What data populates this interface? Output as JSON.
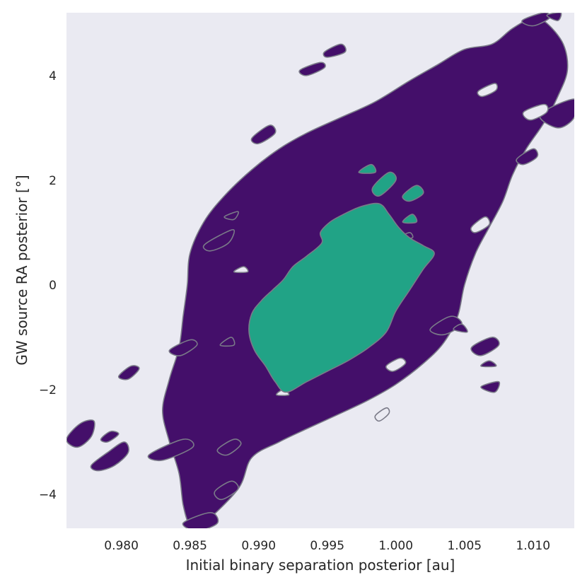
{
  "chart_data": {
    "type": "contour",
    "title": "",
    "xlabel": "Initial binary separation posterior [au]",
    "ylabel": "GW source RA posterior [°]",
    "xlim": [
      0.976,
      1.013
    ],
    "ylim": [
      -4.65,
      5.2
    ],
    "xticks": [
      0.98,
      0.985,
      0.99,
      0.995,
      1.0,
      1.005,
      1.01
    ],
    "xtick_labels": [
      "0.980",
      "0.985",
      "0.990",
      "0.995",
      "1.000",
      "1.005",
      "1.010"
    ],
    "yticks": [
      4,
      2,
      0,
      -2,
      -4
    ],
    "ytick_labels": [
      "4",
      "2",
      "0",
      "−2",
      "−4"
    ],
    "grid": false,
    "background_color": "#eaeaf2",
    "contour_levels": [
      {
        "level": "outer",
        "color": "#440f6a"
      },
      {
        "level": "inner",
        "color": "#21a386"
      }
    ],
    "outer_region": [
      [
        0.9858,
        -4.6
      ],
      [
        0.9885,
        -3.9
      ],
      [
        0.9895,
        -3.3
      ],
      [
        0.9915,
        -3.0
      ],
      [
        0.9935,
        -2.75
      ],
      [
        0.996,
        -2.45
      ],
      [
        0.998,
        -2.2
      ],
      [
        1.0,
        -1.9
      ],
      [
        1.002,
        -1.5
      ],
      [
        1.0035,
        -1.1
      ],
      [
        1.0045,
        -0.6
      ],
      [
        1.005,
        0.0
      ],
      [
        1.0058,
        0.6
      ],
      [
        1.0068,
        1.1
      ],
      [
        1.0078,
        1.6
      ],
      [
        1.0085,
        2.1
      ],
      [
        1.0095,
        2.6
      ],
      [
        1.0108,
        3.1
      ],
      [
        1.0118,
        3.6
      ],
      [
        1.0125,
        4.1
      ],
      [
        1.0122,
        4.6
      ],
      [
        1.011,
        5.0
      ],
      [
        1.01,
        5.1
      ],
      [
        1.0085,
        4.9
      ],
      [
        1.007,
        4.6
      ],
      [
        1.005,
        4.5
      ],
      [
        1.003,
        4.2
      ],
      [
        1.001,
        3.9
      ],
      [
        0.9985,
        3.5
      ],
      [
        0.996,
        3.2
      ],
      [
        0.9935,
        2.9
      ],
      [
        0.9915,
        2.6
      ],
      [
        0.9895,
        2.2
      ],
      [
        0.9875,
        1.7
      ],
      [
        0.986,
        1.2
      ],
      [
        0.985,
        0.6
      ],
      [
        0.9848,
        0.0
      ],
      [
        0.9845,
        -0.6
      ],
      [
        0.9842,
        -1.2
      ],
      [
        0.9835,
        -1.8
      ],
      [
        0.983,
        -2.4
      ],
      [
        0.9835,
        -3.0
      ],
      [
        0.9842,
        -3.6
      ],
      [
        0.9845,
        -4.2
      ],
      [
        0.985,
        -4.6
      ]
    ],
    "inner_region": [
      [
        0.992,
        -2.05
      ],
      [
        0.9935,
        -1.85
      ],
      [
        0.995,
        -1.65
      ],
      [
        0.9965,
        -1.45
      ],
      [
        0.998,
        -1.2
      ],
      [
        0.9993,
        -0.9
      ],
      [
        1.0,
        -0.5
      ],
      [
        1.001,
        -0.1
      ],
      [
        1.002,
        0.3
      ],
      [
        1.0028,
        0.6
      ],
      [
        1.002,
        0.75
      ],
      [
        1.001,
        0.9
      ],
      [
        1.0002,
        1.1
      ],
      [
        0.9995,
        1.35
      ],
      [
        0.9988,
        1.55
      ],
      [
        0.9975,
        1.5
      ],
      [
        0.9962,
        1.35
      ],
      [
        0.9952,
        1.2
      ],
      [
        0.9945,
        1.0
      ],
      [
        0.9946,
        0.8
      ],
      [
        0.9935,
        0.55
      ],
      [
        0.9925,
        0.35
      ],
      [
        0.9918,
        0.1
      ],
      [
        0.991,
        -0.1
      ],
      [
        0.9902,
        -0.3
      ],
      [
        0.9895,
        -0.55
      ],
      [
        0.9893,
        -0.9
      ],
      [
        0.9897,
        -1.25
      ],
      [
        0.9905,
        -1.55
      ],
      [
        0.9912,
        -1.85
      ]
    ],
    "outer_islands": [
      [
        [
          0.976,
          -2.95
        ],
        [
          0.977,
          -2.65
        ],
        [
          0.978,
          -2.6
        ],
        [
          0.9778,
          -2.9
        ],
        [
          0.9768,
          -3.1
        ]
      ],
      [
        [
          0.9778,
          -3.45
        ],
        [
          0.979,
          -3.2
        ],
        [
          0.9802,
          -3.0
        ],
        [
          0.9805,
          -3.2
        ],
        [
          0.9795,
          -3.45
        ],
        [
          0.9783,
          -3.55
        ]
      ],
      [
        [
          0.9785,
          -2.95
        ],
        [
          0.9792,
          -2.8
        ],
        [
          0.9798,
          -2.85
        ],
        [
          0.979,
          -3.0
        ]
      ],
      [
        [
          0.9798,
          -1.75
        ],
        [
          0.9807,
          -1.55
        ],
        [
          0.9813,
          -1.6
        ],
        [
          0.9805,
          -1.8
        ]
      ],
      [
        [
          0.982,
          -3.25
        ],
        [
          0.9845,
          -2.95
        ],
        [
          0.9852,
          -3.1
        ],
        [
          0.983,
          -3.35
        ]
      ],
      [
        [
          0.9835,
          -1.25
        ],
        [
          0.985,
          -1.05
        ],
        [
          0.9855,
          -1.15
        ],
        [
          0.9843,
          -1.35
        ]
      ],
      [
        [
          0.9845,
          -4.55
        ],
        [
          0.9865,
          -4.35
        ],
        [
          0.987,
          -4.55
        ],
        [
          0.9855,
          -4.7
        ]
      ],
      [
        [
          0.986,
          0.75
        ],
        [
          0.9872,
          0.95
        ],
        [
          0.9882,
          1.05
        ],
        [
          0.9878,
          0.8
        ],
        [
          0.9865,
          0.65
        ]
      ],
      [
        [
          0.9868,
          -3.95
        ],
        [
          0.988,
          -3.75
        ],
        [
          0.9885,
          -3.9
        ],
        [
          0.9873,
          -4.1
        ]
      ],
      [
        [
          0.9875,
          1.3
        ],
        [
          0.9885,
          1.4
        ],
        [
          0.9882,
          1.25
        ]
      ],
      [
        [
          0.987,
          -3.15
        ],
        [
          0.9882,
          -2.95
        ],
        [
          0.9887,
          -3.05
        ],
        [
          0.9877,
          -3.25
        ]
      ],
      [
        [
          0.9872,
          -1.15
        ],
        [
          0.988,
          -1.0
        ],
        [
          0.9882,
          -1.15
        ]
      ],
      [
        [
          0.9895,
          2.8
        ],
        [
          0.9908,
          3.05
        ],
        [
          0.9912,
          2.9
        ],
        [
          0.99,
          2.7
        ]
      ],
      [
        [
          0.993,
          4.1
        ],
        [
          0.9945,
          4.25
        ],
        [
          0.9948,
          4.15
        ],
        [
          0.9935,
          4.0
        ]
      ],
      [
        [
          0.9948,
          4.45
        ],
        [
          0.996,
          4.6
        ],
        [
          0.9963,
          4.45
        ],
        [
          0.995,
          4.35
        ]
      ],
      [
        [
          1.0003,
          0.9
        ],
        [
          1.001,
          1.0
        ],
        [
          1.0012,
          0.9
        ]
      ],
      [
        [
          1.0025,
          -0.85
        ],
        [
          1.004,
          -0.6
        ],
        [
          1.0048,
          -0.75
        ],
        [
          1.0035,
          -0.95
        ]
      ],
      [
        [
          1.0042,
          -0.85
        ],
        [
          1.0048,
          -0.75
        ],
        [
          1.0052,
          -0.9
        ]
      ],
      [
        [
          1.0055,
          -1.2
        ],
        [
          1.007,
          -1.0
        ],
        [
          1.0075,
          -1.15
        ],
        [
          1.0062,
          -1.35
        ]
      ],
      [
        [
          1.0062,
          -1.55
        ],
        [
          1.0068,
          -1.45
        ],
        [
          1.0073,
          -1.55
        ]
      ],
      [
        [
          1.0062,
          -1.95
        ],
        [
          1.0075,
          -1.85
        ],
        [
          1.0072,
          -2.05
        ]
      ],
      [
        [
          1.0088,
          2.4
        ],
        [
          1.01,
          2.6
        ],
        [
          1.0103,
          2.45
        ],
        [
          1.0093,
          2.3
        ]
      ],
      [
        [
          1.0105,
          3.25
        ],
        [
          1.013,
          3.55
        ],
        [
          1.013,
          3.2
        ],
        [
          1.0118,
          3.0
        ]
      ],
      [
        [
          1.0092,
          5.05
        ],
        [
          1.0108,
          5.2
        ],
        [
          1.0112,
          5.1
        ],
        [
          1.01,
          4.95
        ]
      ],
      [
        [
          1.011,
          5.15
        ],
        [
          1.012,
          5.2
        ],
        [
          1.0118,
          5.05
        ]
      ]
    ],
    "inner_islands": [
      [
        [
          0.9983,
          1.85
        ],
        [
          0.9995,
          2.15
        ],
        [
          1.0,
          2.0
        ],
        [
          0.9988,
          1.7
        ]
      ],
      [
        [
          1.0005,
          1.7
        ],
        [
          1.0015,
          1.9
        ],
        [
          1.002,
          1.75
        ],
        [
          1.001,
          1.6
        ]
      ],
      [
        [
          1.0005,
          1.2
        ],
        [
          1.0012,
          1.35
        ],
        [
          1.0015,
          1.2
        ]
      ],
      [
        [
          0.9973,
          2.15
        ],
        [
          0.9982,
          2.3
        ],
        [
          0.9985,
          2.15
        ]
      ]
    ],
    "outer_holes": [
      [
        [
          0.9993,
          -1.55
        ],
        [
          1.0003,
          -1.4
        ],
        [
          1.0007,
          -1.5
        ],
        [
          0.9998,
          -1.65
        ]
      ],
      [
        [
          0.9985,
          -2.5
        ],
        [
          0.9993,
          -2.35
        ],
        [
          0.9995,
          -2.45
        ],
        [
          0.9988,
          -2.6
        ]
      ],
      [
        [
          1.0055,
          1.1
        ],
        [
          1.0065,
          1.3
        ],
        [
          1.0068,
          1.15
        ],
        [
          1.0058,
          1.0
        ]
      ],
      [
        [
          1.0093,
          3.3
        ],
        [
          1.0108,
          3.45
        ],
        [
          1.011,
          3.3
        ],
        [
          1.0098,
          3.15
        ]
      ],
      [
        [
          1.006,
          3.7
        ],
        [
          1.0072,
          3.85
        ],
        [
          1.0073,
          3.72
        ],
        [
          1.0063,
          3.6
        ]
      ],
      [
        [
          0.9882,
          0.25
        ],
        [
          0.9889,
          0.35
        ],
        [
          0.9892,
          0.25
        ]
      ],
      [
        [
          0.9913,
          -2.1
        ],
        [
          0.9918,
          -2.0
        ],
        [
          0.9922,
          -2.1
        ]
      ]
    ]
  }
}
